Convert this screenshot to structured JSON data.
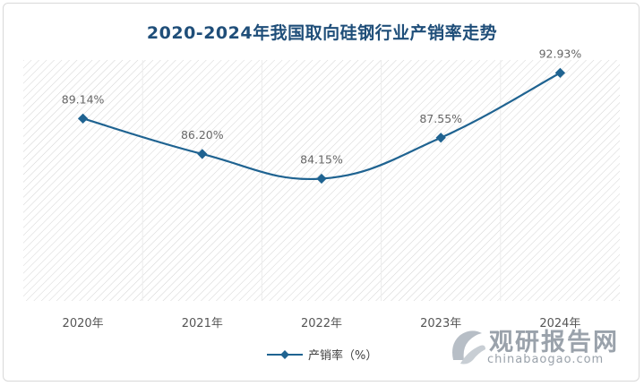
{
  "chart_data": {
    "type": "line",
    "title": "2020-2024年我国取向硅钢行业产销率走势",
    "categories": [
      "2020年",
      "2021年",
      "2022年",
      "2023年",
      "2024年"
    ],
    "series": [
      {
        "name": "产销率（%）",
        "values": [
          89.14,
          86.2,
          84.15,
          87.55,
          92.93
        ],
        "labels": [
          "89.14%",
          "86.20%",
          "84.15%",
          "87.55%",
          "92.93%"
        ]
      }
    ],
    "ylim": [
      74,
      94
    ],
    "grid": false,
    "legend": "bottom",
    "colors": {
      "line": "#1f6391",
      "hatch": "#d4d4d4"
    }
  },
  "watermark": {
    "name": "观研报告网",
    "url": "chinabaogao.com"
  }
}
